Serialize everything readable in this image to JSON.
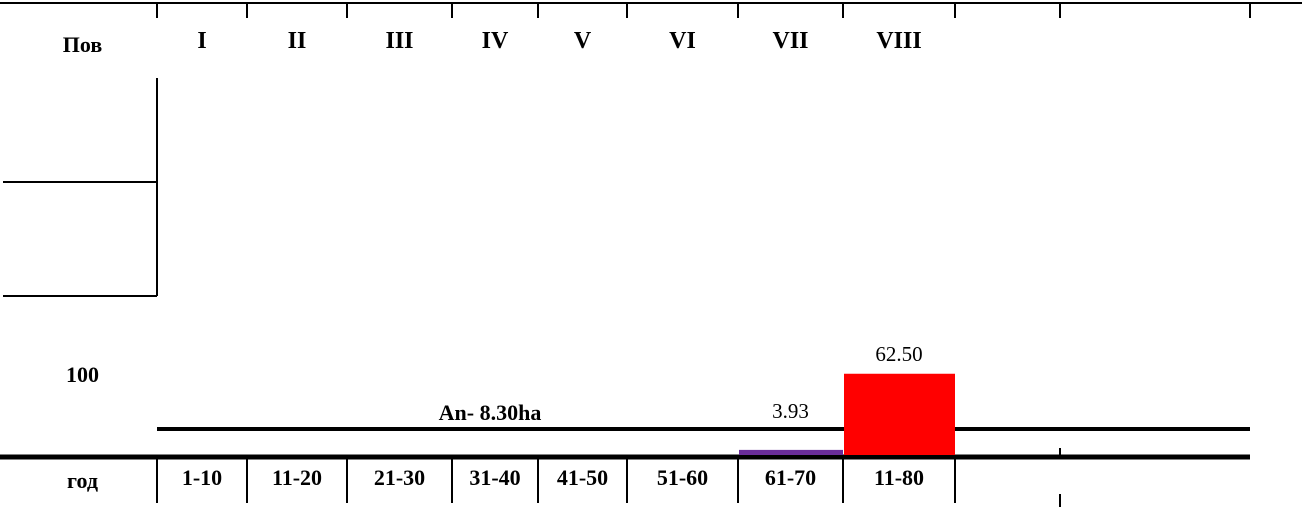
{
  "colors": {
    "lines": "#000000",
    "bar_class_7": "#6a2d9a",
    "bar_class_8": "#ff0000"
  },
  "chart_data": {
    "type": "bar",
    "categories": [
      "I",
      "II",
      "III",
      "IV",
      "V",
      "VI",
      "VII",
      "VIII"
    ],
    "age_ranges": [
      "1-10",
      "11-20",
      "21-30",
      "31-40",
      "41-50",
      "51-60",
      "61-70",
      "11-80"
    ],
    "values": [
      null,
      null,
      null,
      null,
      null,
      null,
      3.93,
      62.5
    ],
    "value_labels": [
      "",
      "",
      "",
      "",
      "",
      "",
      "3.93",
      "62.50"
    ],
    "header_label": "Пов",
    "scale_label": "100",
    "row_label": "год",
    "annotation": "An- 8.30ha",
    "ylim": [
      0,
      100
    ]
  }
}
